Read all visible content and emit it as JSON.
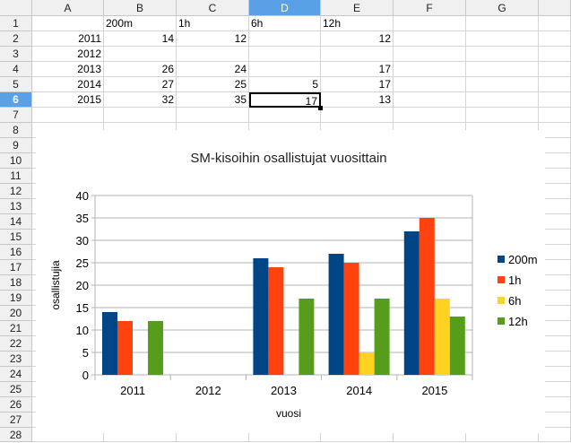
{
  "sheet": {
    "columns": [
      "A",
      "B",
      "C",
      "D",
      "E",
      "F",
      "G"
    ],
    "selected_column": "D",
    "selected_row": 6,
    "row_count": 28,
    "active_cell": "D6",
    "cells": [
      [
        "",
        "200m",
        "1h",
        "6h",
        "12h"
      ],
      [
        "2011",
        "14",
        "12",
        "",
        "12"
      ],
      [
        "2012",
        "",
        "",
        "",
        ""
      ],
      [
        "2013",
        "26",
        "24",
        "",
        "17"
      ],
      [
        "2014",
        "27",
        "25",
        "5",
        "17"
      ],
      [
        "2015",
        "32",
        "35",
        "17",
        "13"
      ]
    ]
  },
  "chart_data": {
    "type": "bar",
    "title": "SM-kisoihin osallistujat vuosittain",
    "xlabel": "vuosi",
    "ylabel": "osallistujia",
    "categories": [
      "2011",
      "2012",
      "2013",
      "2014",
      "2015"
    ],
    "ylim": [
      0,
      40
    ],
    "yticks": [
      0,
      5,
      10,
      15,
      20,
      25,
      30,
      35,
      40
    ],
    "grid": true,
    "legend": "right",
    "series": [
      {
        "name": "200m",
        "color": "#004586",
        "values": [
          14,
          null,
          26,
          27,
          32
        ]
      },
      {
        "name": "1h",
        "color": "#ff420e",
        "values": [
          12,
          null,
          24,
          25,
          35
        ]
      },
      {
        "name": "6h",
        "color": "#ffd320",
        "values": [
          null,
          null,
          null,
          5,
          17
        ]
      },
      {
        "name": "12h",
        "color": "#579d1c",
        "values": [
          12,
          null,
          17,
          17,
          13
        ]
      }
    ]
  }
}
